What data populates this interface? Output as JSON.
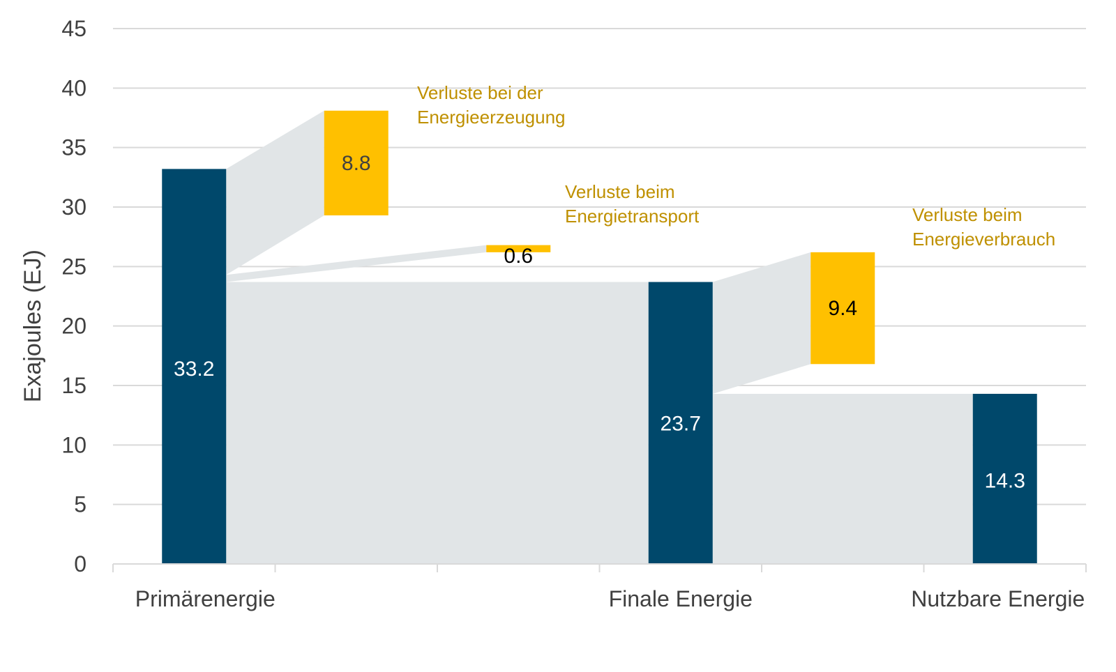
{
  "chart_data": {
    "type": "bar",
    "ylabel": "Exajoules (EJ)",
    "ylim": [
      0,
      45
    ],
    "yticks": [
      "0",
      "5",
      "10",
      "15",
      "20",
      "25",
      "30",
      "35",
      "40",
      "45"
    ],
    "categories": [
      "Primärenergie",
      "Finale Energie",
      "Nutzbare Energie"
    ],
    "grid": true,
    "colors": {
      "stock": "#00486b",
      "loss": "#ffc000",
      "flow": "#e1e5e7",
      "annotation": "#bf9000"
    },
    "stocks": [
      {
        "category": "Primärenergie",
        "value": 33.2,
        "label": "33.2"
      },
      {
        "category": "Finale Energie",
        "value": 23.7,
        "label": "23.7"
      },
      {
        "category": "Nutzbare Energie",
        "value": 14.3,
        "label": "14.3"
      }
    ],
    "losses": [
      {
        "name": "Verluste bei der Energieerzeugung",
        "lines": [
          "Verluste bei der",
          "Energieerzeugung"
        ],
        "value": 8.8,
        "label": "8.8",
        "bottom": 29.3,
        "top": 38.1
      },
      {
        "name": "Verluste beim Energietransport",
        "lines": [
          "Verluste beim",
          "Energietransport"
        ],
        "value": 0.6,
        "label": "0.6",
        "bottom": 26.2,
        "top": 26.8
      },
      {
        "name": "Verluste beim Energieverbrauch",
        "lines": [
          "Verluste beim",
          "Energieverbrauch"
        ],
        "value": 9.4,
        "label": "9.4",
        "bottom": 16.8,
        "top": 26.2
      }
    ]
  }
}
